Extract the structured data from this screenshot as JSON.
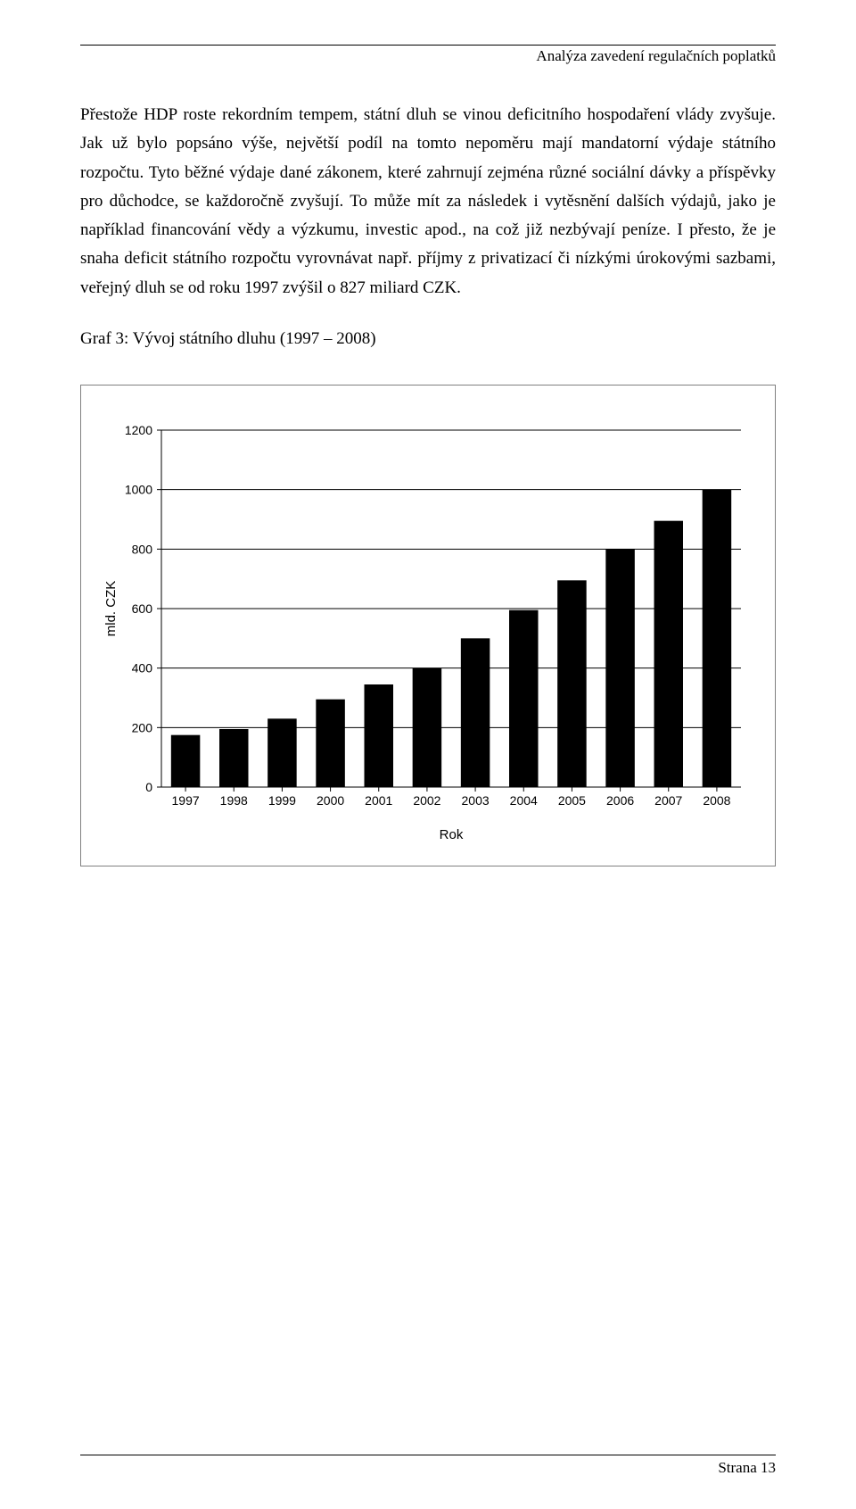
{
  "header": {
    "running_title": "Analýza zavedení regulačních poplatků"
  },
  "body": {
    "paragraph1": "Přestože HDP roste rekordním tempem, státní dluh se vinou deficitního hospodaření vlády zvyšuje. Jak už bylo popsáno výše, největší podíl na tomto nepoměru mají mandatorní výdaje státního rozpočtu. Tyto běžné výdaje dané zákonem, které zahrnují zejména různé sociální dávky a příspěvky pro důchodce, se každoročně zvyšují. To může mít za následek i vytěsnění dalších výdajů, jako je například financování vědy a výzkumu, investic apod., na což již nezbývají peníze. I přesto, že je snaha deficit státního rozpočtu vyrovnávat např. příjmy z privatizací či nízkými úrokovými sazbami, veřejný dluh se od roku 1997 zvýšil o 827 miliard CZK.",
    "chart_caption": "Graf 3: Vývoj státního dluhu (1997 – 2008)"
  },
  "chart": {
    "type": "bar",
    "ylabel": "mld. CZK",
    "xlabel": "Rok",
    "categories": [
      "1997",
      "1998",
      "1999",
      "2000",
      "2001",
      "2002",
      "2003",
      "2004",
      "2005",
      "2006",
      "2007",
      "2008"
    ],
    "values": [
      175,
      195,
      230,
      295,
      345,
      400,
      500,
      595,
      695,
      800,
      895,
      1000
    ],
    "bar_color": "#000000",
    "background_color": "#ffffff",
    "grid_color": "#000000",
    "axis_color": "#000000",
    "ylim": [
      0,
      1200
    ],
    "ytick_step": 200,
    "bar_width": 0.6,
    "axis_fontsize": 14,
    "label_fontsize": 15,
    "tick_font": "Arial"
  },
  "footer": {
    "page_label": "Strana 13"
  }
}
